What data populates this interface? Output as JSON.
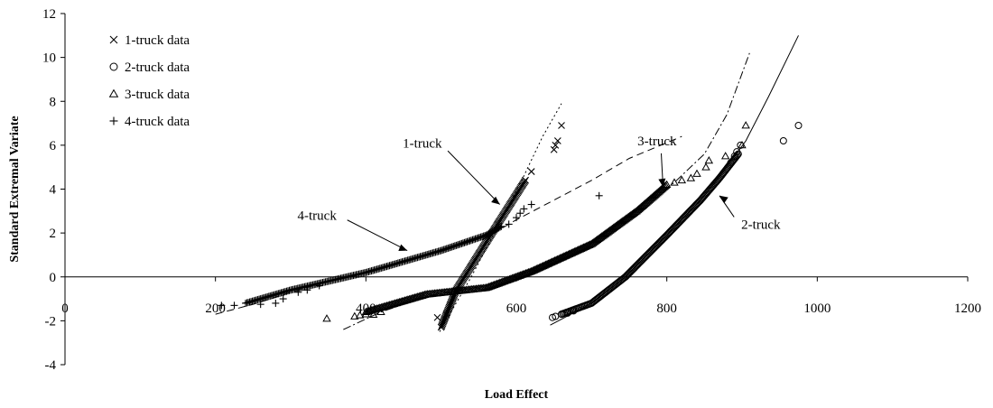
{
  "chart_data": {
    "type": "scatter",
    "xlabel": "Load Effect",
    "ylabel": "Standard Extremal Variate",
    "xlim": [
      0,
      1200
    ],
    "ylim": [
      -4,
      12
    ],
    "xticks": [
      0,
      200,
      400,
      600,
      800,
      1000,
      1200
    ],
    "yticks": [
      -4,
      -2,
      0,
      2,
      4,
      6,
      8,
      10,
      12
    ],
    "grid": false,
    "legend_position": "top-left",
    "series": [
      {
        "name": "1-truck data",
        "marker": "x",
        "segments": [
          [
            500,
            -2.3,
            520,
            -0.6
          ],
          [
            520,
            -0.6,
            575,
            2.4
          ],
          [
            575,
            2.4,
            612,
            4.4
          ]
        ],
        "points": [
          [
            495,
            -1.85
          ],
          [
            507,
            -1.7
          ],
          [
            612,
            4.4
          ],
          [
            620,
            4.8
          ],
          [
            650,
            5.8
          ],
          [
            652,
            6.0
          ],
          [
            655,
            6.2
          ],
          [
            660,
            6.9
          ]
        ]
      },
      {
        "name": "2-truck data",
        "marker": "circle",
        "segments": [
          [
            660,
            -1.7
          ],
          [
            700,
            -1.2
          ],
          [
            745,
            0.0
          ],
          [
            800,
            1.9
          ],
          [
            845,
            3.5
          ],
          [
            870,
            4.5
          ],
          [
            895,
            5.6
          ]
        ],
        "points": [
          [
            648,
            -1.85
          ],
          [
            652,
            -1.8
          ],
          [
            660,
            -1.7
          ],
          [
            668,
            -1.65
          ],
          [
            676,
            -1.55
          ],
          [
            885,
            5.2
          ],
          [
            890,
            5.5
          ],
          [
            893,
            5.7
          ],
          [
            898,
            6.0
          ],
          [
            955,
            6.2
          ],
          [
            975,
            6.9
          ]
        ]
      },
      {
        "name": "3-truck data",
        "marker": "triangle",
        "segments": [
          [
            400,
            -1.6
          ],
          [
            480,
            -0.8
          ],
          [
            560,
            -0.5
          ],
          [
            620,
            0.25
          ],
          [
            700,
            1.5
          ],
          [
            760,
            3.0
          ],
          [
            800,
            4.2
          ]
        ],
        "points": [
          [
            348,
            -1.9
          ],
          [
            385,
            -1.8
          ],
          [
            392,
            -1.75
          ],
          [
            400,
            -1.7
          ],
          [
            410,
            -1.72
          ],
          [
            420,
            -1.6
          ],
          [
            810,
            4.3
          ],
          [
            820,
            4.4
          ],
          [
            832,
            4.5
          ],
          [
            840,
            4.7
          ],
          [
            852,
            5.0
          ],
          [
            856,
            5.3
          ],
          [
            878,
            5.5
          ],
          [
            900,
            6.0
          ],
          [
            905,
            6.9
          ]
        ]
      },
      {
        "name": "4-truck data",
        "marker": "plus",
        "segments": [
          [
            240,
            -1.2
          ],
          [
            300,
            -0.6
          ],
          [
            350,
            -0.2
          ],
          [
            400,
            0.2
          ],
          [
            450,
            0.7
          ],
          [
            500,
            1.2
          ],
          [
            560,
            1.9
          ],
          [
            580,
            2.3
          ]
        ],
        "points": [
          [
            208,
            -1.3
          ],
          [
            225,
            -1.3
          ],
          [
            260,
            -1.25
          ],
          [
            280,
            -1.2
          ],
          [
            290,
            -1.0
          ],
          [
            310,
            -0.7
          ],
          [
            322,
            -0.6
          ],
          [
            338,
            -0.4
          ],
          [
            590,
            2.4
          ],
          [
            600,
            2.7
          ],
          [
            605,
            2.9
          ],
          [
            610,
            3.1
          ],
          [
            620,
            3.3
          ],
          [
            710,
            3.7
          ]
        ]
      }
    ],
    "fit_lines": [
      {
        "series": "1-truck",
        "style": "dotted",
        "points": [
          [
            498,
            -2.5
          ],
          [
            540,
            0.0
          ],
          [
            580,
            2.6
          ],
          [
            610,
            4.6
          ],
          [
            635,
            6.4
          ],
          [
            660,
            7.9
          ]
        ]
      },
      {
        "series": "2-truck",
        "style": "solid",
        "points": [
          [
            645,
            -2.2
          ],
          [
            700,
            -1.2
          ],
          [
            745,
            0.0
          ],
          [
            800,
            1.9
          ],
          [
            845,
            3.5
          ],
          [
            875,
            4.8
          ],
          [
            905,
            6.2
          ],
          [
            935,
            8.2
          ],
          [
            975,
            11.0
          ]
        ]
      },
      {
        "series": "3-truck",
        "style": "dash-dot",
        "points": [
          [
            370,
            -2.4
          ],
          [
            420,
            -1.6
          ],
          [
            480,
            -0.9
          ],
          [
            560,
            -0.4
          ],
          [
            620,
            0.3
          ],
          [
            700,
            1.6
          ],
          [
            760,
            3.1
          ],
          [
            810,
            4.3
          ],
          [
            850,
            5.6
          ],
          [
            880,
            7.4
          ],
          [
            910,
            10.2
          ]
        ]
      },
      {
        "series": "3-truck",
        "style": "dashed",
        "points": [
          [
            555,
            1.7
          ],
          [
            600,
            2.6
          ],
          [
            650,
            3.5
          ],
          [
            700,
            4.4
          ],
          [
            750,
            5.4
          ],
          [
            820,
            6.4
          ]
        ]
      },
      {
        "series": "4-truck",
        "style": "dashed",
        "points": [
          [
            200,
            -1.7
          ],
          [
            250,
            -1.25
          ],
          [
            300,
            -0.7
          ],
          [
            350,
            -0.2
          ],
          [
            400,
            0.2
          ],
          [
            450,
            0.7
          ],
          [
            500,
            1.2
          ],
          [
            560,
            1.9
          ]
        ]
      }
    ],
    "annotations": [
      {
        "text": "1-truck",
        "label_at": [
          475,
          6.1
        ],
        "arrow_to": [
          578,
          3.3
        ]
      },
      {
        "text": "2-truck",
        "label_at": [
          925,
          2.4
        ],
        "arrow_to": [
          870,
          3.7
        ]
      },
      {
        "text": "3-truck",
        "label_at": [
          787,
          6.2
        ],
        "arrow_to": [
          795,
          4.1
        ]
      },
      {
        "text": "4-truck",
        "label_at": [
          335,
          2.8
        ],
        "arrow_to": [
          455,
          1.2
        ]
      }
    ]
  }
}
